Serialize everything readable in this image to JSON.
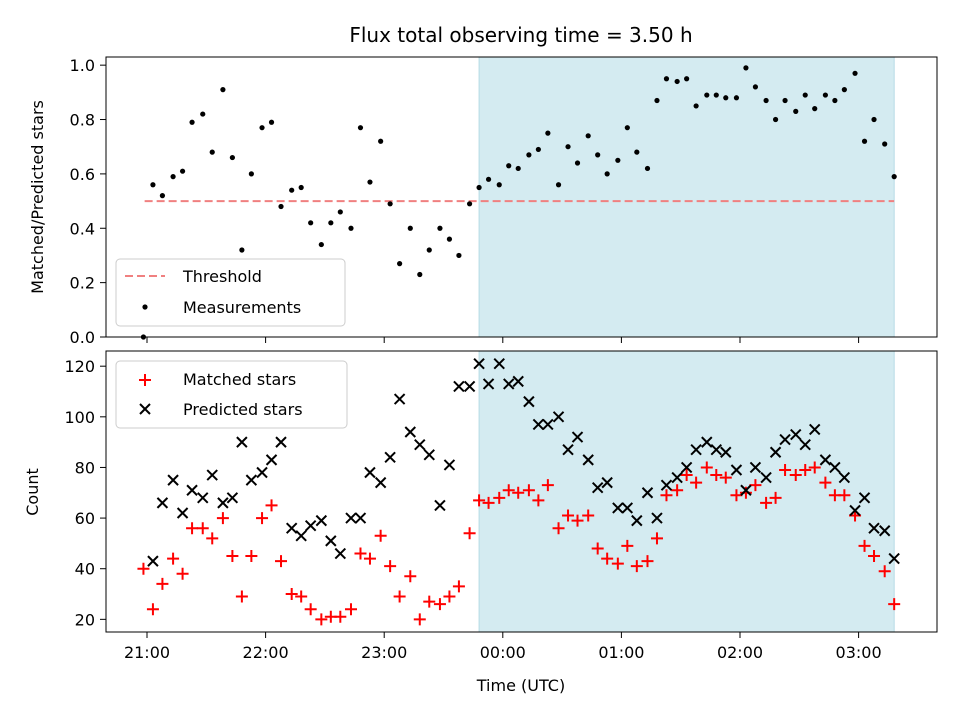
{
  "chart_data": [
    {
      "type": "scatter",
      "title": "Flux total observing time = 3.50 h",
      "ylabel": "Matched/Predicted stars",
      "xlabel": "",
      "ylim": [
        0,
        1.03
      ],
      "yticks": [
        0.0,
        0.2,
        0.4,
        0.6,
        0.8,
        1.0
      ],
      "ytick_labels": [
        "0.0",
        "0.2",
        "0.4",
        "0.6",
        "0.8",
        "1.0"
      ],
      "x_unit": "hours since 21:00 UTC",
      "highlight_span": {
        "x_start": 2.8,
        "x_end": 6.3,
        "color": "#d4ebf1"
      },
      "legend": {
        "placement": "lower-left",
        "entries": [
          "Threshold",
          "Measurements"
        ]
      },
      "series": [
        {
          "name": "Threshold",
          "kind": "dashed-line",
          "color": "#f08080",
          "y": 0.5,
          "x_range": [
            -0.02,
            6.3
          ]
        },
        {
          "name": "Measurements",
          "kind": "dot",
          "color": "#000000",
          "x": [
            -0.03,
            0.05,
            0.13,
            0.22,
            0.3,
            0.38,
            0.47,
            0.55,
            0.64,
            0.72,
            0.8,
            0.88,
            0.97,
            1.05,
            1.13,
            1.22,
            1.3,
            1.38,
            1.47,
            1.55,
            1.63,
            1.72,
            1.8,
            1.88,
            1.97,
            2.05,
            2.13,
            2.22,
            2.3,
            2.38,
            2.47,
            2.55,
            2.63,
            2.72,
            2.8,
            2.88,
            2.97,
            3.05,
            3.13,
            3.22,
            3.3,
            3.38,
            3.47,
            3.55,
            3.63,
            3.72,
            3.8,
            3.88,
            3.97,
            4.05,
            4.13,
            4.22,
            4.3,
            4.38,
            4.47,
            4.55,
            4.63,
            4.72,
            4.8,
            4.88,
            4.97,
            5.05,
            5.13,
            5.22,
            5.3,
            5.38,
            5.47,
            5.55,
            5.63,
            5.72,
            5.8,
            5.88,
            5.97,
            6.05,
            6.13,
            6.22,
            6.3
          ],
          "y": [
            0.0,
            0.56,
            0.52,
            0.59,
            0.61,
            0.79,
            0.82,
            0.68,
            0.91,
            0.66,
            0.32,
            0.6,
            0.77,
            0.79,
            0.48,
            0.54,
            0.55,
            0.42,
            0.34,
            0.42,
            0.46,
            0.4,
            0.77,
            0.57,
            0.72,
            0.49,
            0.27,
            0.4,
            0.23,
            0.32,
            0.4,
            0.36,
            0.3,
            0.49,
            0.55,
            0.58,
            0.56,
            0.63,
            0.62,
            0.67,
            0.69,
            0.75,
            0.56,
            0.7,
            0.64,
            0.74,
            0.67,
            0.6,
            0.65,
            0.77,
            0.68,
            0.62,
            0.87,
            0.95,
            0.94,
            0.95,
            0.85,
            0.89,
            0.89,
            0.88,
            0.88,
            0.99,
            0.92,
            0.87,
            0.8,
            0.87,
            0.83,
            0.89,
            0.84,
            0.89,
            0.87,
            0.91,
            0.97,
            0.72,
            0.8,
            0.71,
            0.59
          ]
        }
      ]
    },
    {
      "type": "scatter",
      "title": "",
      "ylabel": "Count",
      "xlabel": "Time (UTC)",
      "ylim": [
        15,
        126
      ],
      "yticks": [
        20,
        40,
        60,
        80,
        100,
        120
      ],
      "ytick_labels": [
        "20",
        "40",
        "60",
        "80",
        "100",
        "120"
      ],
      "xticks": [
        0,
        1,
        2,
        3,
        4,
        5,
        6
      ],
      "xtick_labels": [
        "21:00",
        "22:00",
        "23:00",
        "00:00",
        "01:00",
        "02:00",
        "03:00"
      ],
      "x_unit": "hours since 21:00 UTC",
      "highlight_span": {
        "x_start": 2.8,
        "x_end": 6.3,
        "color": "#d4ebf1"
      },
      "legend": {
        "placement": "upper-left",
        "entries": [
          "Matched stars",
          "Predicted stars"
        ]
      },
      "series": [
        {
          "name": "Matched stars",
          "kind": "plus",
          "color": "#ff0000",
          "x": [
            -0.03,
            0.05,
            0.13,
            0.22,
            0.3,
            0.38,
            0.47,
            0.55,
            0.64,
            0.72,
            0.8,
            0.88,
            0.97,
            1.05,
            1.13,
            1.22,
            1.3,
            1.38,
            1.47,
            1.55,
            1.63,
            1.72,
            1.8,
            1.88,
            1.97,
            2.05,
            2.13,
            2.22,
            2.3,
            2.38,
            2.47,
            2.55,
            2.63,
            2.72,
            2.8,
            2.88,
            2.97,
            3.05,
            3.13,
            3.22,
            3.3,
            3.38,
            3.47,
            3.55,
            3.63,
            3.72,
            3.8,
            3.88,
            3.97,
            4.05,
            4.13,
            4.22,
            4.3,
            4.38,
            4.47,
            4.55,
            4.63,
            4.72,
            4.8,
            4.88,
            4.97,
            5.05,
            5.13,
            5.22,
            5.3,
            5.38,
            5.47,
            5.55,
            5.63,
            5.72,
            5.8,
            5.88,
            5.97,
            6.05,
            6.13,
            6.22,
            6.3
          ],
          "y": [
            40,
            24,
            34,
            44,
            38,
            56,
            56,
            52,
            60,
            45,
            29,
            45,
            60,
            65,
            43,
            30,
            29,
            24,
            20,
            21,
            21,
            24,
            46,
            44,
            53,
            41,
            29,
            37,
            20,
            27,
            26,
            29,
            33,
            54,
            67,
            66,
            68,
            71,
            70,
            71,
            67,
            73,
            56,
            61,
            59,
            61,
            48,
            44,
            42,
            49,
            41,
            43,
            52,
            69,
            71,
            77,
            74,
            80,
            77,
            76,
            69,
            70,
            73,
            66,
            68,
            79,
            77,
            79,
            80,
            74,
            69,
            69,
            61,
            49,
            45,
            39,
            26
          ]
        },
        {
          "name": "Predicted stars",
          "kind": "x",
          "color": "#000000",
          "x": [
            0.05,
            0.13,
            0.22,
            0.3,
            0.38,
            0.47,
            0.55,
            0.64,
            0.72,
            0.8,
            0.88,
            0.97,
            1.05,
            1.13,
            1.22,
            1.3,
            1.38,
            1.47,
            1.55,
            1.63,
            1.72,
            1.8,
            1.88,
            1.97,
            2.05,
            2.13,
            2.22,
            2.3,
            2.38,
            2.47,
            2.55,
            2.63,
            2.72,
            2.8,
            2.88,
            2.97,
            3.05,
            3.13,
            3.22,
            3.3,
            3.38,
            3.47,
            3.55,
            3.63,
            3.72,
            3.8,
            3.88,
            3.97,
            4.05,
            4.13,
            4.22,
            4.3,
            4.38,
            4.47,
            4.55,
            4.63,
            4.72,
            4.8,
            4.88,
            4.97,
            5.05,
            5.13,
            5.22,
            5.3,
            5.38,
            5.47,
            5.55,
            5.63,
            5.72,
            5.8,
            5.88,
            5.97,
            6.05,
            6.13,
            6.22,
            6.3
          ],
          "y": [
            43,
            66,
            75,
            62,
            71,
            68,
            77,
            66,
            68,
            90,
            75,
            78,
            83,
            90,
            56,
            53,
            57,
            59,
            51,
            46,
            60,
            60,
            78,
            74,
            84,
            107,
            94,
            89,
            85,
            65,
            81,
            112,
            112,
            121,
            113,
            121,
            113,
            114,
            106,
            97,
            97,
            100,
            87,
            92,
            83,
            72,
            74,
            64,
            64,
            59,
            70,
            60,
            73,
            76,
            80,
            87,
            90,
            87,
            86,
            79,
            71,
            80,
            76,
            86,
            91,
            93,
            89,
            95,
            83,
            80,
            76,
            63,
            68,
            56,
            55,
            44
          ]
        }
      ]
    }
  ]
}
